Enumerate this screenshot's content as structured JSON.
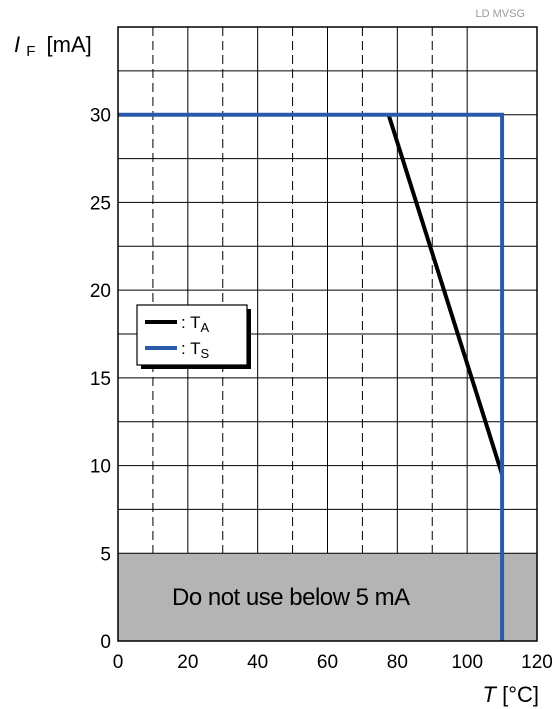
{
  "watermark": "LD MVSG",
  "chart_data": {
    "type": "line",
    "xlabel": {
      "symbol": "T",
      "unit": "[°C]"
    },
    "ylabel": {
      "symbol": "I",
      "subscript": "F",
      "unit": "[mA]"
    },
    "xlim": [
      0,
      120
    ],
    "ylim": [
      0,
      35
    ],
    "xticks": [
      0,
      20,
      40,
      60,
      80,
      100,
      120
    ],
    "yticks": [
      0,
      5,
      10,
      15,
      20,
      25,
      30
    ],
    "grid": {
      "horizontal_solid_step": 2.5,
      "vertical_solid": [
        20,
        40,
        60,
        80,
        100
      ],
      "vertical_dashed": [
        10,
        30,
        50,
        70,
        90
      ]
    },
    "forbidden_zone": {
      "y_max": 5,
      "color": "#b4b4b4",
      "label": "Do not use below 5 mA"
    },
    "legend_position": "left-middle",
    "series": [
      {
        "name": "T",
        "subscript": "A",
        "color": "#000000",
        "x": [
          77.5,
          110
        ],
        "y": [
          30,
          9.5
        ]
      },
      {
        "name": "T",
        "subscript": "S",
        "color": "#2b5ba8",
        "x": [
          0,
          110,
          110
        ],
        "y": [
          30,
          30,
          0
        ]
      }
    ]
  }
}
